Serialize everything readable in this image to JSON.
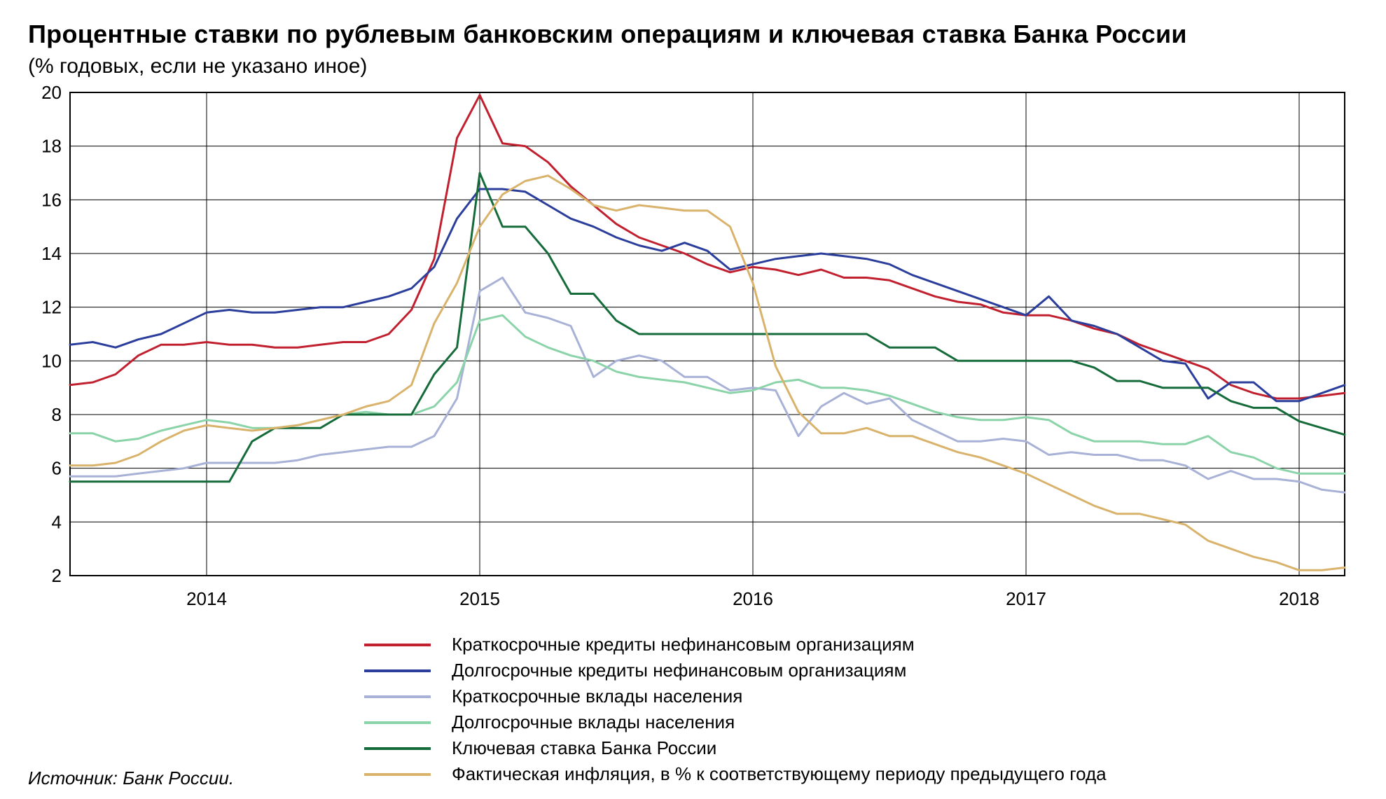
{
  "title": "Процентные ставки по рублевым банковским операциям и ключевая ставка Банка России",
  "subtitle": "(% годовых, если не указано иное)",
  "source": "Источник: Банк России.",
  "chart": {
    "type": "line",
    "background_color": "#ffffff",
    "plot_bg": "#ffffff",
    "grid_color": "#000000",
    "grid_stroke": 1,
    "border_color": "#000000",
    "border_stroke": 2,
    "axis_color": "#000000",
    "line_width": 3,
    "title_fontsize": 36,
    "subtitle_fontsize": 30,
    "tick_fontsize": 26,
    "legend_fontsize": 26,
    "ylim": [
      2,
      20
    ],
    "ytick_step": 2,
    "yticks": [
      2,
      4,
      6,
      8,
      10,
      12,
      14,
      16,
      18,
      20
    ],
    "x_index_range": [
      0,
      56
    ],
    "x_vertical_lines_at": [
      6,
      18,
      30,
      42,
      54
    ],
    "x_vertical_labels": [
      "2014",
      "2015",
      "2016",
      "2017",
      "2018"
    ],
    "series": [
      {
        "name": "Краткосрочные кредиты нефинансовым организациям",
        "color": "#c1202f",
        "values": [
          9.1,
          9.2,
          9.5,
          10.2,
          10.6,
          10.6,
          10.7,
          10.6,
          10.6,
          10.5,
          10.5,
          10.6,
          10.7,
          10.7,
          11.0,
          11.9,
          13.8,
          18.3,
          19.9,
          18.1,
          18.0,
          17.4,
          16.5,
          15.8,
          15.1,
          14.6,
          14.3,
          14.0,
          13.6,
          13.3,
          13.5,
          13.4,
          13.2,
          13.4,
          13.1,
          13.1,
          13.0,
          12.7,
          12.4,
          12.2,
          12.1,
          11.8,
          11.7,
          11.7,
          11.5,
          11.2,
          11.0,
          10.6,
          10.3,
          10.0,
          9.7,
          9.1,
          8.8,
          8.6,
          8.6,
          8.7,
          8.8
        ]
      },
      {
        "name": "Долгосрочные кредиты нефинансовым организациям",
        "color": "#2b3e9b",
        "values": [
          10.6,
          10.7,
          10.5,
          10.8,
          11.0,
          11.4,
          11.8,
          11.9,
          11.8,
          11.8,
          11.9,
          12.0,
          12.0,
          12.2,
          12.4,
          12.7,
          13.5,
          15.3,
          16.4,
          16.4,
          16.3,
          15.8,
          15.3,
          15.0,
          14.6,
          14.3,
          14.1,
          14.4,
          14.1,
          13.4,
          13.6,
          13.8,
          13.9,
          14.0,
          13.9,
          13.8,
          13.6,
          13.2,
          12.9,
          12.6,
          12.3,
          12.0,
          11.7,
          12.4,
          11.5,
          11.3,
          11.0,
          10.5,
          10.0,
          9.9,
          8.6,
          9.2,
          9.2,
          8.5,
          8.5,
          8.8,
          9.1
        ]
      },
      {
        "name": "Краткосрочные вклады населения",
        "color": "#a8b1d6",
        "values": [
          5.7,
          5.7,
          5.7,
          5.8,
          5.9,
          6.0,
          6.2,
          6.2,
          6.2,
          6.2,
          6.3,
          6.5,
          6.6,
          6.7,
          6.8,
          6.8,
          7.2,
          8.6,
          12.6,
          13.1,
          11.8,
          11.6,
          11.3,
          9.4,
          10.0,
          10.2,
          10.0,
          9.4,
          9.4,
          8.9,
          9.0,
          8.9,
          7.2,
          8.3,
          8.8,
          8.4,
          8.6,
          7.8,
          7.4,
          7.0,
          7.0,
          7.1,
          7.0,
          6.5,
          6.6,
          6.5,
          6.5,
          6.3,
          6.3,
          6.1,
          5.6,
          5.9,
          5.6,
          5.6,
          5.5,
          5.2,
          5.1
        ]
      },
      {
        "name": "Долгосрочные вклады населения",
        "color": "#8bd3a8",
        "values": [
          7.3,
          7.3,
          7.0,
          7.1,
          7.4,
          7.6,
          7.8,
          7.7,
          7.5,
          7.5,
          7.6,
          7.8,
          8.0,
          8.1,
          8.0,
          8.0,
          8.3,
          9.2,
          11.5,
          11.7,
          10.9,
          10.5,
          10.2,
          10.0,
          9.6,
          9.4,
          9.3,
          9.2,
          9.0,
          8.8,
          8.9,
          9.2,
          9.3,
          9.0,
          9.0,
          8.9,
          8.7,
          8.4,
          8.1,
          7.9,
          7.8,
          7.8,
          7.9,
          7.8,
          7.3,
          7.0,
          7.0,
          7.0,
          6.9,
          6.9,
          7.2,
          6.6,
          6.4,
          6.0,
          5.8,
          5.8,
          5.8
        ]
      },
      {
        "name": "Ключевая ставка Банка России",
        "color": "#156b3a",
        "values": [
          5.5,
          5.5,
          5.5,
          5.5,
          5.5,
          5.5,
          5.5,
          5.5,
          7.0,
          7.5,
          7.5,
          7.5,
          8.0,
          8.0,
          8.0,
          8.0,
          9.5,
          10.5,
          17.0,
          15.0,
          15.0,
          14.0,
          12.5,
          12.5,
          11.5,
          11.0,
          11.0,
          11.0,
          11.0,
          11.0,
          11.0,
          11.0,
          11.0,
          11.0,
          11.0,
          11.0,
          10.5,
          10.5,
          10.5,
          10.0,
          10.0,
          10.0,
          10.0,
          10.0,
          10.0,
          9.75,
          9.25,
          9.25,
          9.0,
          9.0,
          9.0,
          8.5,
          8.25,
          8.25,
          7.75,
          7.5,
          7.25
        ]
      },
      {
        "name": "Фактическая инфляция, в % к соответствующему  периоду предыдущего года",
        "color": "#d9b36c",
        "values": [
          6.1,
          6.1,
          6.2,
          6.5,
          7.0,
          7.4,
          7.6,
          7.5,
          7.4,
          7.5,
          7.6,
          7.8,
          8.0,
          8.3,
          8.5,
          9.1,
          11.4,
          12.9,
          15.0,
          16.2,
          16.7,
          16.9,
          16.4,
          15.8,
          15.6,
          15.8,
          15.7,
          15.6,
          15.6,
          15.0,
          12.9,
          9.8,
          8.1,
          7.3,
          7.3,
          7.5,
          7.2,
          7.2,
          6.9,
          6.6,
          6.4,
          6.1,
          5.8,
          5.4,
          5.0,
          4.6,
          4.3,
          4.3,
          4.1,
          3.9,
          3.3,
          3.0,
          2.7,
          2.5,
          2.2,
          2.2,
          2.3
        ]
      }
    ]
  }
}
